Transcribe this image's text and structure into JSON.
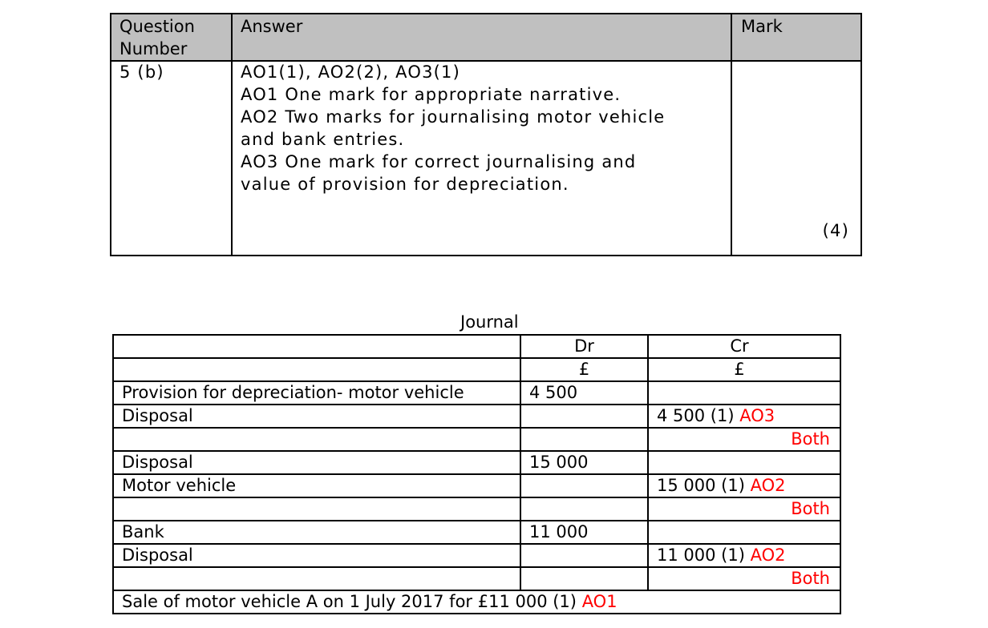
{
  "mark_scheme": {
    "headers": {
      "question_number": "Question Number",
      "answer": "Answer",
      "mark": "Mark"
    },
    "question": "5 (b)",
    "answer_lines": [
      "AO1(1), AO2(2), AO3(1)",
      "AO1 One mark for appropriate narrative.",
      "AO2 Two marks for journalising motor vehicle",
      "and bank entries.",
      "AO3 One mark for correct journalising and",
      "value of provision for depreciation."
    ],
    "mark": "(4)"
  },
  "journal": {
    "title": "Journal",
    "dr_header": "Dr",
    "cr_header": "Cr",
    "currency": "£",
    "rows": [
      {
        "account": "Provision for depreciation- motor vehicle",
        "dr": "4 500",
        "cr": "",
        "cr_tag": ""
      },
      {
        "account": "Disposal",
        "dr": "",
        "cr": "4 500 (1)",
        "cr_tag": "AO3"
      },
      {
        "account": "",
        "dr": "",
        "cr": "",
        "note": "Both"
      },
      {
        "account": "Disposal",
        "dr": "15 000",
        "cr": "",
        "cr_tag": ""
      },
      {
        "account": "Motor vehicle",
        "dr": "",
        "cr": "15 000 (1)",
        "cr_tag": "AO2"
      },
      {
        "account": "",
        "dr": "",
        "cr": "",
        "note": "Both"
      },
      {
        "account": "Bank",
        "dr": "11 000",
        "cr": "",
        "cr_tag": ""
      },
      {
        "account": "Disposal",
        "dr": "",
        "cr": "11 000 (1)",
        "cr_tag": "AO2"
      },
      {
        "account": "",
        "dr": "",
        "cr": "",
        "note": "Both"
      }
    ],
    "narrative": "Sale of motor vehicle A on 1 July 2017 for £11 000 (1)",
    "narrative_tag": "AO1"
  },
  "colors": {
    "header_bg": "#c0c0c0",
    "annotation": "#ff0000"
  }
}
